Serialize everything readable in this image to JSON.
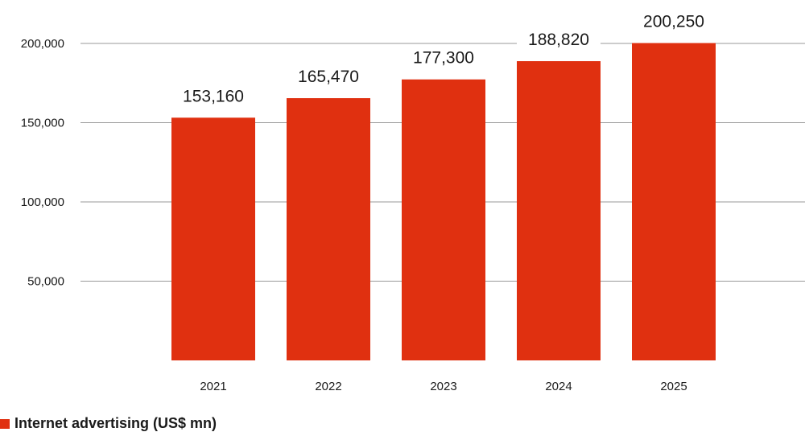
{
  "chart_data": {
    "type": "bar",
    "categories": [
      "2021",
      "2022",
      "2023",
      "2024",
      "2025"
    ],
    "series": [
      {
        "name": "Internet advertising (US$ mn)",
        "values": [
          153160,
          165470,
          177300,
          188820,
          200250
        ],
        "color": "#e03010"
      }
    ],
    "data_labels": [
      "153,160",
      "165,470",
      "177,300",
      "188,820",
      "200,250"
    ],
    "y_ticks": [
      50000,
      100000,
      150000,
      200000
    ],
    "y_tick_labels": [
      "50,000",
      "100,000",
      "150,000",
      "200,000"
    ],
    "ylim": [
      0,
      200000
    ],
    "grid": true,
    "legend_position": "bottom-left",
    "title": "",
    "xlabel": "",
    "ylabel": ""
  },
  "legend": {
    "label": "Internet advertising (US$ mn)",
    "color": "#e03010"
  }
}
